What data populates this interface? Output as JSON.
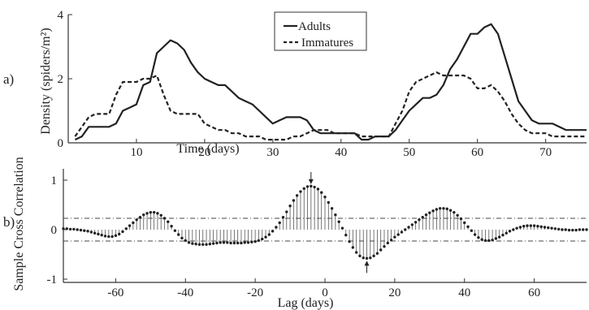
{
  "chart_data": [
    {
      "type": "line",
      "panel_label": "a)",
      "xlabel": "Time (days)",
      "ylabel": "Density  (spiders/m²)",
      "xlim": [
        0,
        76
      ],
      "ylim": [
        0,
        4
      ],
      "x_ticks": [
        10,
        20,
        30,
        40,
        50,
        60,
        70
      ],
      "y_ticks": [
        0,
        2,
        4
      ],
      "legend_position": "top-center",
      "series": [
        {
          "name": "Adults",
          "style": "solid",
          "color": "#222222",
          "x": [
            1,
            2,
            3,
            4,
            5,
            6,
            7,
            8,
            9,
            10,
            11,
            12,
            13,
            14,
            15,
            16,
            17,
            18,
            19,
            20,
            21,
            22,
            23,
            24,
            25,
            26,
            27,
            28,
            29,
            30,
            31,
            32,
            33,
            34,
            35,
            36,
            37,
            38,
            39,
            40,
            41,
            42,
            43,
            44,
            45,
            46,
            47,
            48,
            49,
            50,
            51,
            52,
            53,
            54,
            55,
            56,
            57,
            58,
            59,
            60,
            61,
            62,
            63,
            64,
            65,
            66,
            67,
            68,
            69,
            70,
            71,
            72,
            73,
            74,
            75,
            76
          ],
          "y": [
            0.1,
            0.2,
            0.5,
            0.5,
            0.5,
            0.5,
            0.6,
            1.0,
            1.1,
            1.2,
            1.8,
            1.9,
            2.8,
            3.0,
            3.2,
            3.1,
            2.9,
            2.5,
            2.2,
            2.0,
            1.9,
            1.8,
            1.8,
            1.6,
            1.4,
            1.3,
            1.2,
            1.0,
            0.8,
            0.6,
            0.7,
            0.8,
            0.8,
            0.8,
            0.7,
            0.4,
            0.3,
            0.3,
            0.3,
            0.3,
            0.3,
            0.3,
            0.1,
            0.1,
            0.2,
            0.2,
            0.2,
            0.4,
            0.7,
            1.0,
            1.2,
            1.4,
            1.4,
            1.5,
            1.8,
            2.3,
            2.6,
            3.0,
            3.4,
            3.4,
            3.6,
            3.7,
            3.4,
            2.7,
            2.0,
            1.3,
            1.0,
            0.7,
            0.6,
            0.6,
            0.6,
            0.5,
            0.4,
            0.4,
            0.4,
            0.4
          ]
        },
        {
          "name": "Immatures",
          "style": "dashed",
          "color": "#222222",
          "x": [
            1,
            2,
            3,
            4,
            5,
            6,
            7,
            8,
            9,
            10,
            11,
            12,
            13,
            14,
            15,
            16,
            17,
            18,
            19,
            20,
            21,
            22,
            23,
            24,
            25,
            26,
            27,
            28,
            29,
            30,
            31,
            32,
            33,
            34,
            35,
            36,
            37,
            38,
            39,
            40,
            41,
            42,
            43,
            44,
            45,
            46,
            47,
            48,
            49,
            50,
            51,
            52,
            53,
            54,
            55,
            56,
            57,
            58,
            59,
            60,
            61,
            62,
            63,
            64,
            65,
            66,
            67,
            68,
            69,
            70,
            71,
            72,
            73,
            74,
            75,
            76
          ],
          "y": [
            0.2,
            0.5,
            0.8,
            0.9,
            0.9,
            0.9,
            1.5,
            1.9,
            1.9,
            1.9,
            2.0,
            2.0,
            2.1,
            1.5,
            1.0,
            0.9,
            0.9,
            0.9,
            0.9,
            0.6,
            0.5,
            0.4,
            0.4,
            0.3,
            0.3,
            0.2,
            0.2,
            0.2,
            0.1,
            0.1,
            0.1,
            0.1,
            0.2,
            0.2,
            0.3,
            0.4,
            0.4,
            0.4,
            0.3,
            0.3,
            0.3,
            0.3,
            0.2,
            0.2,
            0.2,
            0.2,
            0.2,
            0.6,
            1.0,
            1.6,
            1.9,
            2.0,
            2.1,
            2.2,
            2.1,
            2.1,
            2.1,
            2.1,
            2.0,
            1.7,
            1.7,
            1.8,
            1.6,
            1.3,
            0.9,
            0.6,
            0.4,
            0.3,
            0.3,
            0.3,
            0.2,
            0.2,
            0.2,
            0.2,
            0.2,
            0.2
          ]
        }
      ]
    },
    {
      "type": "stem",
      "panel_label": "b)",
      "xlabel": "Lag (days)",
      "ylabel": "Sample Cross Correlation",
      "xlim": [
        -75,
        75
      ],
      "ylim": [
        -1,
        1
      ],
      "x_ticks": [
        -60,
        -40,
        -20,
        0,
        20,
        40,
        60
      ],
      "x_tick_labels": [
        "-60",
        "-40",
        "-20",
        "0",
        "20",
        "40",
        "60"
      ],
      "y_ticks": [
        -1,
        0,
        1
      ],
      "y_tick_labels": [
        "-1",
        "0",
        "1"
      ],
      "confidence_bounds": [
        0.23,
        -0.23
      ],
      "annotations": [
        {
          "type": "arrow-down",
          "x": -4,
          "y": 0.87
        },
        {
          "type": "arrow-up",
          "x": 12,
          "y": -0.58
        }
      ],
      "series": [
        {
          "name": "",
          "lags": [
            -75,
            -74,
            -73,
            -72,
            -71,
            -70,
            -69,
            -68,
            -67,
            -66,
            -65,
            -64,
            -63,
            -62,
            -61,
            -60,
            -59,
            -58,
            -57,
            -56,
            -55,
            -54,
            -53,
            -52,
            -51,
            -50,
            -49,
            -48,
            -47,
            -46,
            -45,
            -44,
            -43,
            -42,
            -41,
            -40,
            -39,
            -38,
            -37,
            -36,
            -35,
            -34,
            -33,
            -32,
            -31,
            -30,
            -29,
            -28,
            -27,
            -26,
            -25,
            -24,
            -23,
            -22,
            -21,
            -20,
            -19,
            -18,
            -17,
            -16,
            -15,
            -14,
            -13,
            -12,
            -11,
            -10,
            -9,
            -8,
            -7,
            -6,
            -5,
            -4,
            -3,
            -2,
            -1,
            0,
            1,
            2,
            3,
            4,
            5,
            6,
            7,
            8,
            9,
            10,
            11,
            12,
            13,
            14,
            15,
            16,
            17,
            18,
            19,
            20,
            21,
            22,
            23,
            24,
            25,
            26,
            27,
            28,
            29,
            30,
            31,
            32,
            33,
            34,
            35,
            36,
            37,
            38,
            39,
            40,
            41,
            42,
            43,
            44,
            45,
            46,
            47,
            48,
            49,
            50,
            51,
            52,
            53,
            54,
            55,
            56,
            57,
            58,
            59,
            60,
            61,
            62,
            63,
            64,
            65,
            66,
            67,
            68,
            69,
            70,
            71,
            72,
            73,
            74,
            75
          ],
          "values": [
            0.02,
            0.02,
            0.01,
            0.01,
            0.0,
            -0.01,
            -0.02,
            -0.03,
            -0.05,
            -0.07,
            -0.09,
            -0.11,
            -0.13,
            -0.14,
            -0.14,
            -0.12,
            -0.09,
            -0.04,
            0.02,
            0.08,
            0.14,
            0.2,
            0.25,
            0.3,
            0.33,
            0.35,
            0.35,
            0.33,
            0.29,
            0.23,
            0.16,
            0.07,
            -0.02,
            -0.1,
            -0.17,
            -0.22,
            -0.26,
            -0.28,
            -0.29,
            -0.3,
            -0.3,
            -0.3,
            -0.29,
            -0.28,
            -0.27,
            -0.26,
            -0.26,
            -0.26,
            -0.27,
            -0.27,
            -0.27,
            -0.27,
            -0.26,
            -0.26,
            -0.25,
            -0.24,
            -0.22,
            -0.19,
            -0.15,
            -0.1,
            -0.03,
            0.05,
            0.14,
            0.25,
            0.36,
            0.48,
            0.59,
            0.69,
            0.77,
            0.83,
            0.87,
            0.88,
            0.86,
            0.82,
            0.75,
            0.66,
            0.55,
            0.43,
            0.3,
            0.16,
            0.03,
            -0.11,
            -0.24,
            -0.36,
            -0.46,
            -0.53,
            -0.57,
            -0.58,
            -0.57,
            -0.53,
            -0.48,
            -0.41,
            -0.34,
            -0.27,
            -0.21,
            -0.15,
            -0.1,
            -0.05,
            0.0,
            0.05,
            0.1,
            0.15,
            0.2,
            0.25,
            0.3,
            0.34,
            0.38,
            0.41,
            0.43,
            0.43,
            0.42,
            0.39,
            0.35,
            0.29,
            0.22,
            0.14,
            0.06,
            -0.02,
            -0.1,
            -0.16,
            -0.2,
            -0.22,
            -0.22,
            -0.21,
            -0.18,
            -0.15,
            -0.11,
            -0.07,
            -0.03,
            0.0,
            0.03,
            0.05,
            0.07,
            0.08,
            0.08,
            0.08,
            0.07,
            0.06,
            0.05,
            0.04,
            0.03,
            0.02,
            0.01,
            0.0,
            0.0,
            -0.01,
            -0.01,
            -0.01,
            0.0,
            0.0,
            0.0
          ]
        }
      ]
    }
  ]
}
